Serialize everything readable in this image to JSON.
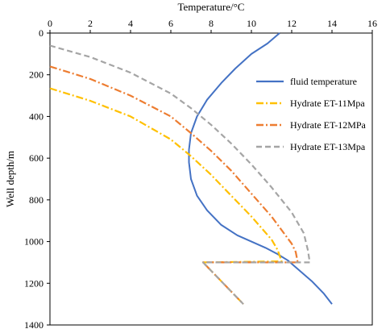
{
  "chart_data": {
    "type": "line",
    "xlabel": "Temperature/°C",
    "ylabel": "Well depth/m",
    "xlim": [
      0,
      16
    ],
    "ylim": [
      0,
      1400
    ],
    "y_inverted": true,
    "x_axis_position": "top",
    "x_ticks": [
      0,
      2,
      4,
      6,
      8,
      10,
      12,
      14,
      16
    ],
    "y_ticks": [
      0,
      200,
      400,
      600,
      800,
      1000,
      1200,
      1400
    ],
    "grid": false,
    "legend_position": "right",
    "series": [
      {
        "name": "fluid temperature",
        "color": "#4472c4",
        "dash": "solid",
        "points": [
          [
            11.4,
            0
          ],
          [
            10.8,
            50
          ],
          [
            10.0,
            100
          ],
          [
            9.2,
            170
          ],
          [
            8.5,
            240
          ],
          [
            7.8,
            320
          ],
          [
            7.3,
            400
          ],
          [
            7.0,
            480
          ],
          [
            6.9,
            560
          ],
          [
            6.9,
            620
          ],
          [
            7.0,
            700
          ],
          [
            7.3,
            780
          ],
          [
            7.8,
            850
          ],
          [
            8.5,
            920
          ],
          [
            9.3,
            970
          ],
          [
            10.0,
            1000
          ],
          [
            10.7,
            1030
          ],
          [
            11.3,
            1060
          ],
          [
            11.8,
            1090
          ],
          [
            12.4,
            1140
          ],
          [
            13.0,
            1190
          ],
          [
            13.6,
            1250
          ],
          [
            14.0,
            1300
          ]
        ]
      },
      {
        "name": "Hydrate ET-11Mpa",
        "color": "#ffc000",
        "dash": "dashdot",
        "points": [
          [
            0,
            265
          ],
          [
            2,
            325
          ],
          [
            4,
            400
          ],
          [
            6,
            510
          ],
          [
            7,
            590
          ],
          [
            8,
            680
          ],
          [
            9,
            780
          ],
          [
            10,
            880
          ],
          [
            11,
            990
          ],
          [
            11.3,
            1040
          ],
          [
            11.5,
            1095
          ],
          [
            7.6,
            1100
          ],
          [
            9.6,
            1300
          ]
        ]
      },
      {
        "name": "Hydrate ET-12MPa",
        "color": "#ed7d31",
        "dash": "dashdot",
        "points": [
          [
            0,
            160
          ],
          [
            2,
            220
          ],
          [
            4,
            300
          ],
          [
            6,
            400
          ],
          [
            7,
            480
          ],
          [
            8,
            565
          ],
          [
            9,
            660
          ],
          [
            10,
            770
          ],
          [
            11,
            880
          ],
          [
            12,
            1010
          ],
          [
            12.2,
            1050
          ],
          [
            12.3,
            1100
          ],
          [
            7.6,
            1100
          ],
          [
            9.6,
            1300
          ]
        ]
      },
      {
        "name": "Hydrate ET-13Mpa",
        "color": "#a5a5a5",
        "dash": "dashed",
        "points": [
          [
            0,
            60
          ],
          [
            2,
            115
          ],
          [
            4,
            190
          ],
          [
            6,
            290
          ],
          [
            7,
            360
          ],
          [
            8,
            440
          ],
          [
            9,
            530
          ],
          [
            10,
            630
          ],
          [
            11,
            740
          ],
          [
            12,
            860
          ],
          [
            12.6,
            960
          ],
          [
            12.8,
            1040
          ],
          [
            12.9,
            1100
          ],
          [
            7.6,
            1100
          ],
          [
            9.6,
            1300
          ]
        ]
      }
    ]
  }
}
